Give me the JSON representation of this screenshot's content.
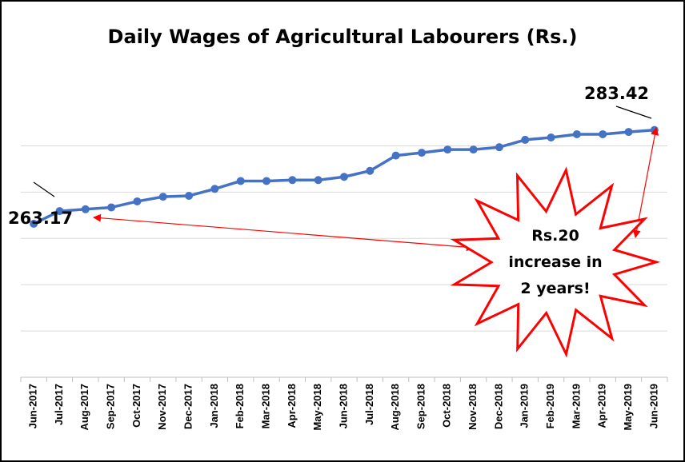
{
  "chart_data": {
    "type": "line",
    "title": "Daily Wages of Agricultural Labourers (Rs.)",
    "xlabel": "",
    "ylabel": "",
    "categories": [
      "Jun-2017",
      "Jul-2017",
      "Aug-2017",
      "Sep-2017",
      "Oct-2017",
      "Nov-2017",
      "Dec-2017",
      "Jan-2018",
      "Feb-2018",
      "Mar-2018",
      "Apr-2018",
      "May-2018",
      "Jun-2018",
      "Jul-2018",
      "Aug-2018",
      "Sep-2018",
      "Oct-2018",
      "Nov-2018",
      "Dec-2018",
      "Jan-2019",
      "Feb-2019",
      "Mar-2019",
      "Apr-2019",
      "May-2019",
      "Jun-2019"
    ],
    "series": [
      {
        "values": [
          263.17,
          265.9,
          266.3,
          266.7,
          268.0,
          269.0,
          269.2,
          270.7,
          272.4,
          272.4,
          272.6,
          272.6,
          273.3,
          274.6,
          277.9,
          278.5,
          279.2,
          279.2,
          279.7,
          281.3,
          281.8,
          282.5,
          282.5,
          283.0,
          283.42
        ],
        "color": "#4472C4"
      }
    ],
    "ylim": [
      230,
      297
    ],
    "gridlines": [
      240,
      250,
      260,
      270,
      280
    ],
    "grid": true,
    "y_tick_labels": false,
    "annotations": {
      "start_value": "263.17",
      "end_value": "283.42",
      "burst_lines": [
        "Rs.20",
        "increase in",
        "2 years!"
      ]
    },
    "colors": {
      "line": "#4472C4",
      "grid": "#D9D9D9",
      "arrow": "#FF0000",
      "burst_stroke": "#FF0000"
    }
  }
}
